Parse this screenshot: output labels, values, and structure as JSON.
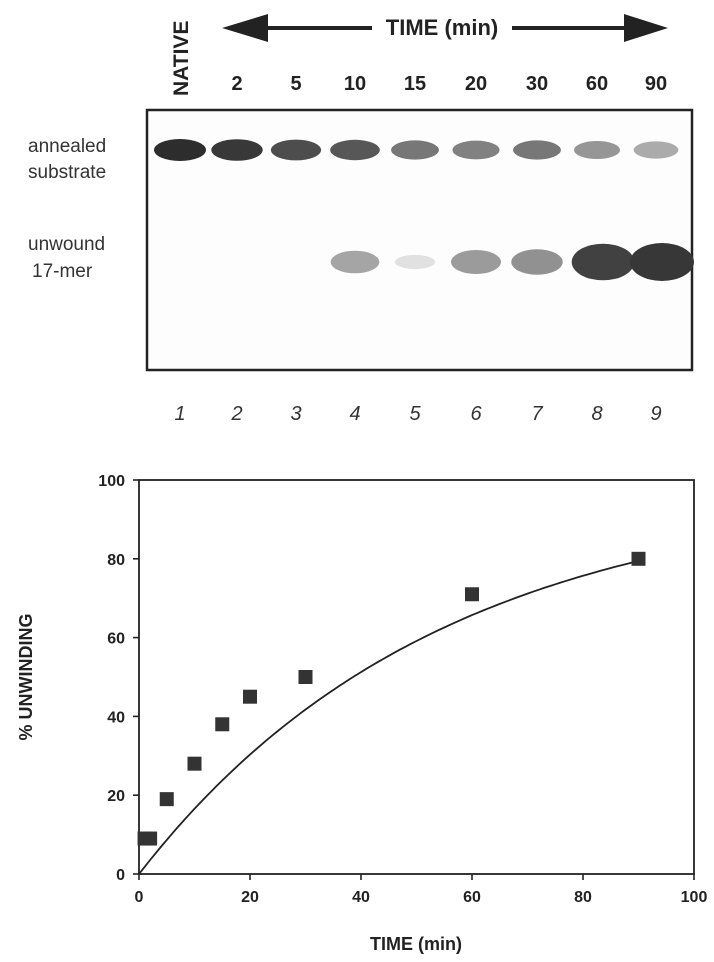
{
  "gel": {
    "time_header": "TIME (min)",
    "native_label": "NATIVE",
    "time_points": [
      "2",
      "5",
      "10",
      "15",
      "20",
      "30",
      "60",
      "90"
    ],
    "row_labels": {
      "annealed_line1": "annealed",
      "annealed_line2": "substrate",
      "unwound_line1": "unwound",
      "unwound_line2": "17-mer"
    },
    "lane_numbers": [
      "1",
      "2",
      "3",
      "4",
      "5",
      "6",
      "7",
      "8",
      "9"
    ],
    "band_intensity": {
      "annealed": [
        1.0,
        0.95,
        0.85,
        0.8,
        0.65,
        0.6,
        0.65,
        0.5,
        0.4
      ],
      "unwound": [
        0,
        0,
        0,
        0.45,
        0.15,
        0.5,
        0.55,
        0.95,
        1.0
      ]
    }
  },
  "chart_data": {
    "type": "scatter",
    "x": [
      1,
      2,
      5,
      10,
      15,
      20,
      30,
      60,
      90
    ],
    "y": [
      9,
      9,
      19,
      28,
      38,
      45,
      50,
      71,
      80
    ],
    "fit_curve": true,
    "xlabel": "TIME (min)",
    "ylabel": "% UNWINDING",
    "xlim": [
      0,
      100
    ],
    "ylim": [
      0,
      100
    ],
    "xticks": [
      0,
      20,
      40,
      60,
      80,
      100
    ],
    "yticks": [
      0,
      20,
      40,
      60,
      80,
      100
    ],
    "grid": false
  }
}
